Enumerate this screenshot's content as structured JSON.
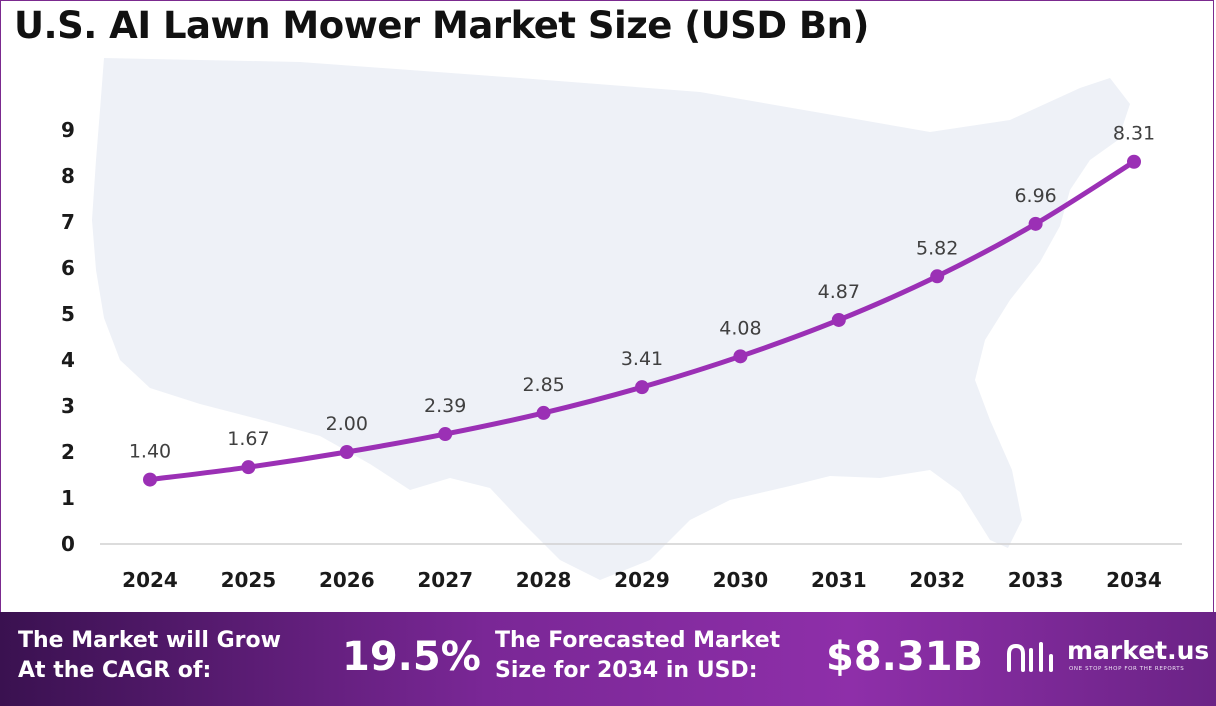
{
  "title": "U.S. AI Lawn Mower Market Size (USD Bn)",
  "chart_data": {
    "type": "line",
    "title": "U.S. AI Lawn Mower Market Size (USD Bn)",
    "xlabel": "",
    "ylabel": "",
    "categories": [
      "2024",
      "2025",
      "2026",
      "2027",
      "2028",
      "2029",
      "2030",
      "2031",
      "2032",
      "2033",
      "2034"
    ],
    "series": [
      {
        "values": [
          1.4,
          1.67,
          2.0,
          2.39,
          2.85,
          3.41,
          4.08,
          4.87,
          5.82,
          6.96,
          8.31
        ]
      }
    ],
    "data_labels": [
      "1.40",
      "1.67",
      "2.00",
      "2.39",
      "2.85",
      "3.41",
      "4.08",
      "4.87",
      "5.82",
      "6.96",
      "8.31"
    ],
    "ylim": [
      0,
      9
    ],
    "yticks": [
      "0",
      "1",
      "2",
      "3",
      "4",
      "5",
      "6",
      "7",
      "8",
      "9"
    ],
    "grid": false,
    "legend": "none",
    "line_color": "#9b30b5",
    "background_map": "us-map-silhouette"
  },
  "footer": {
    "cagr_label_line1": "The Market will Grow",
    "cagr_label_line2": "At the CAGR of:",
    "cagr_value": "19.5%",
    "forecast_label_line1": "The Forecasted Market",
    "forecast_label_line2": "Size for 2034 in USD:",
    "forecast_value": "$8.31B",
    "brand_name": "market.us",
    "brand_tagline": "ONE STOP SHOP FOR THE REPORTS"
  }
}
